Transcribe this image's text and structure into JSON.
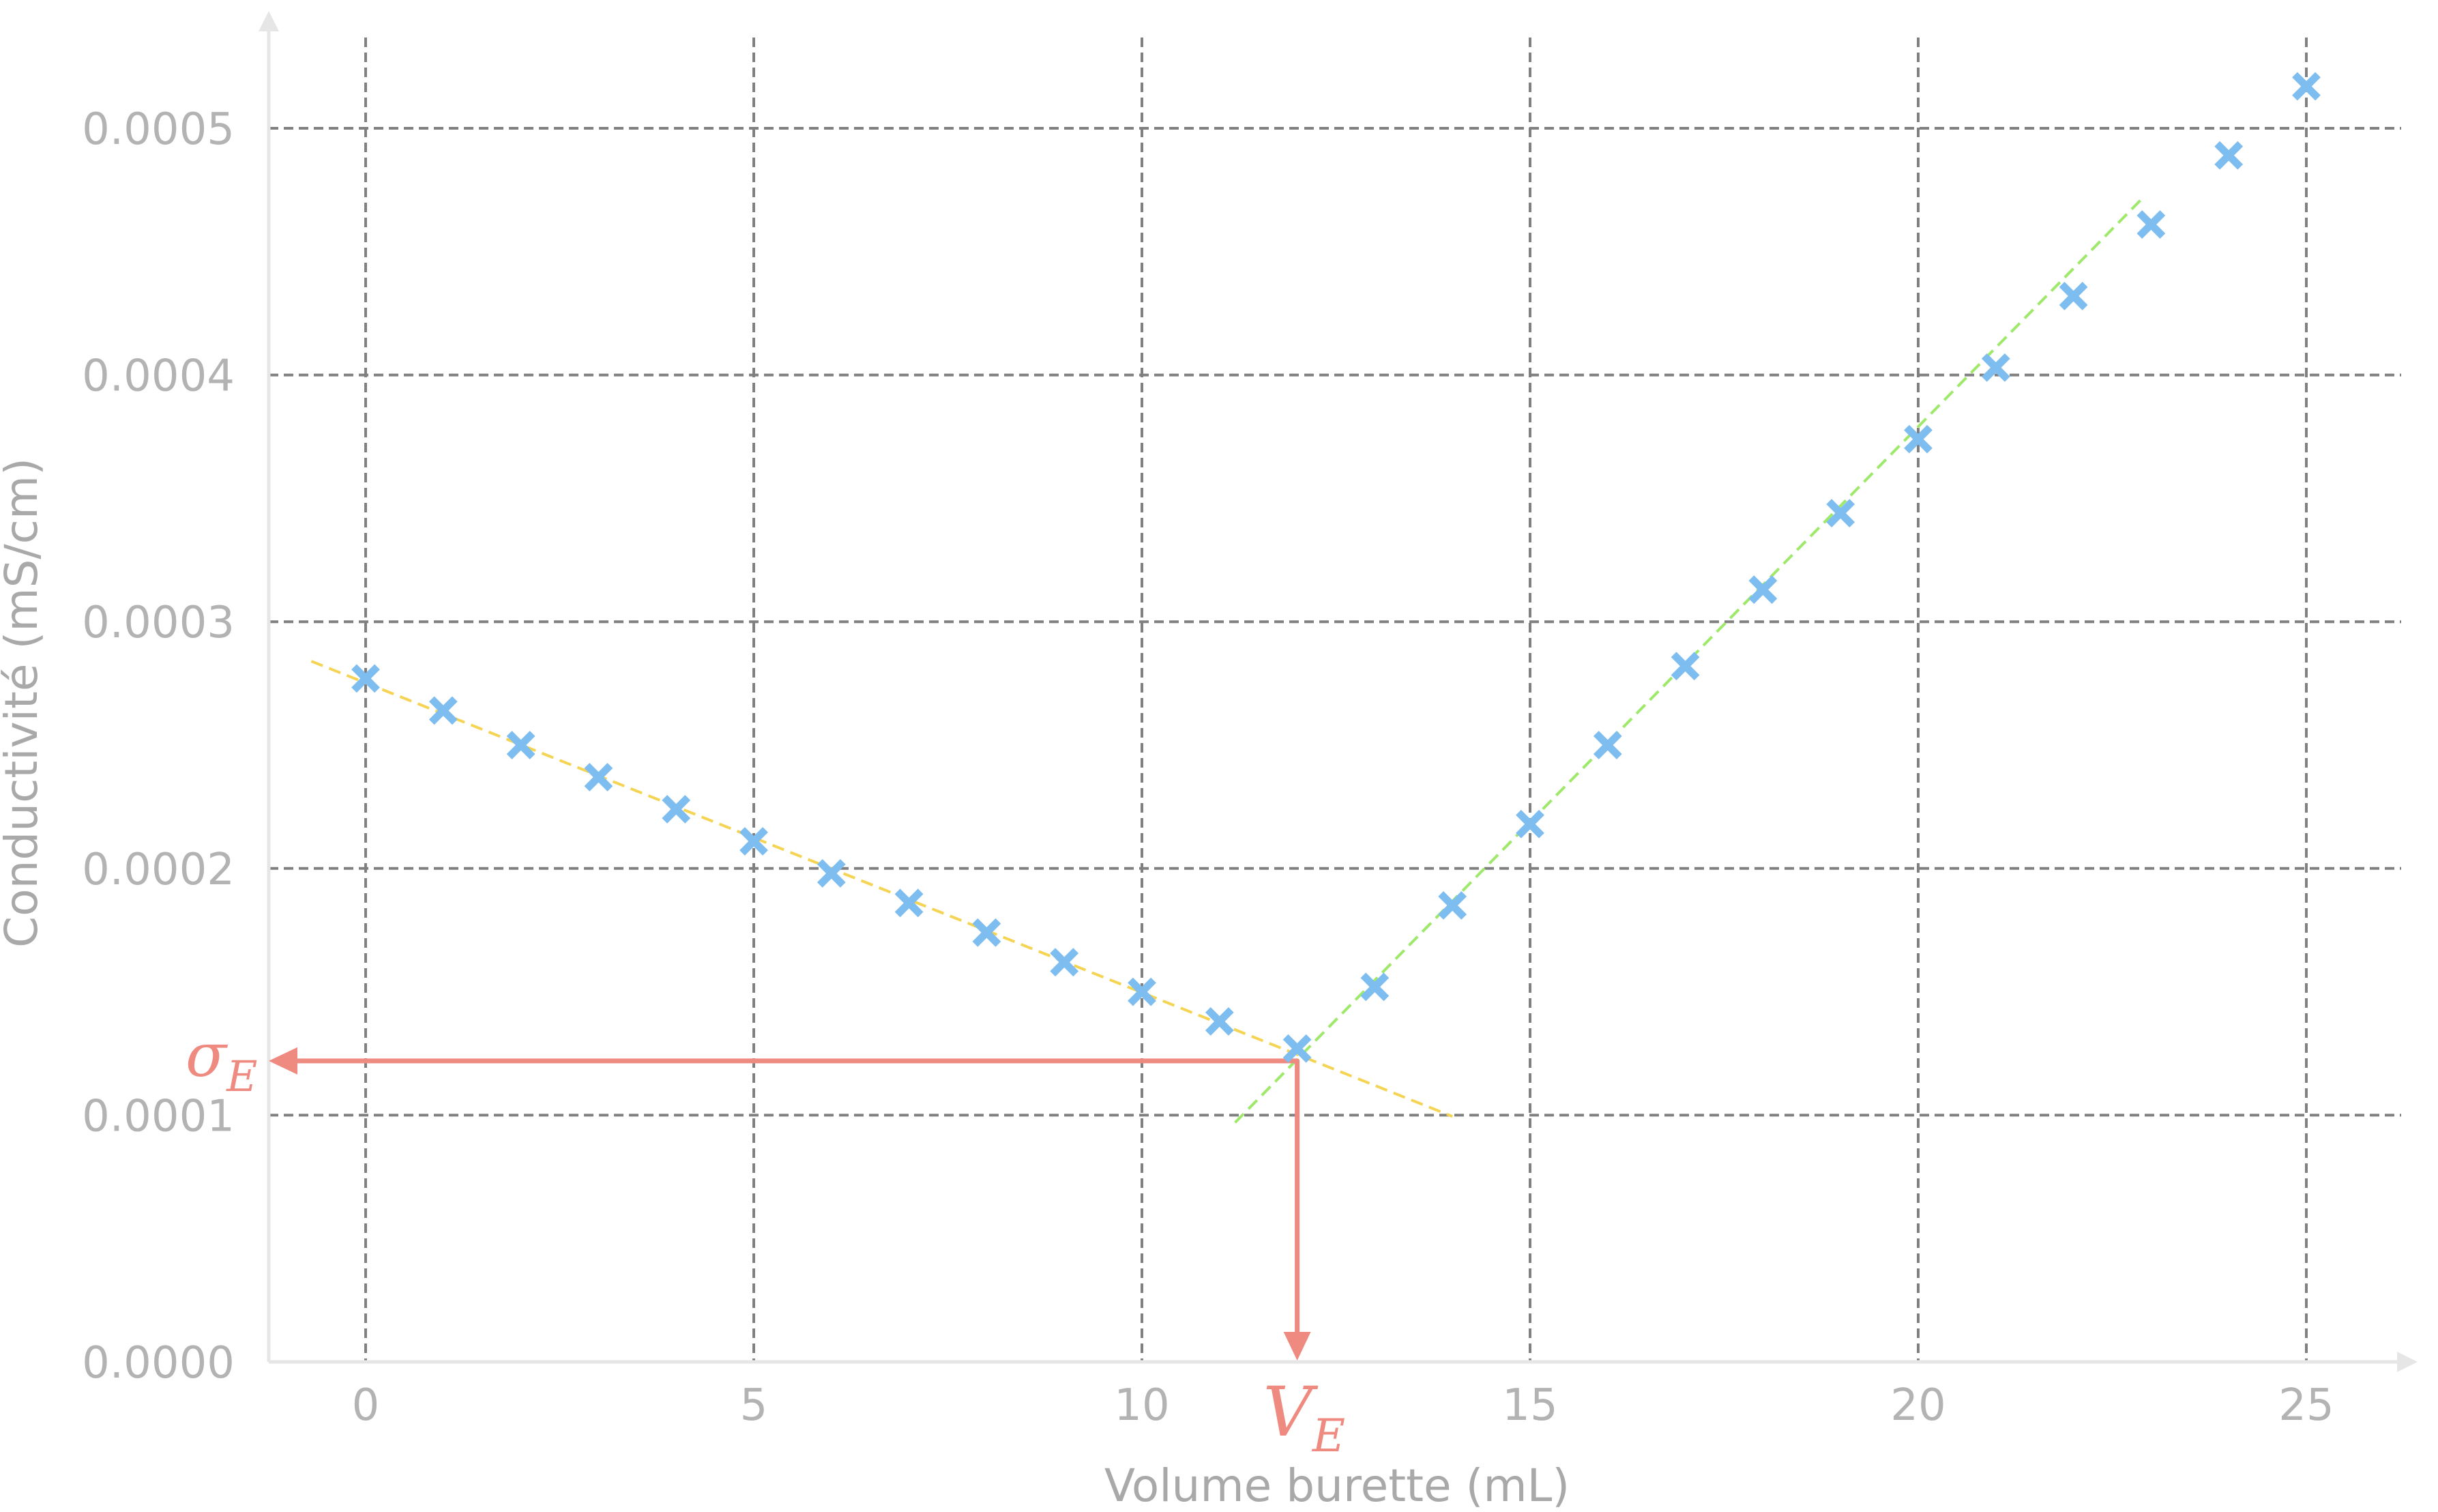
{
  "chart_data": {
    "type": "scatter",
    "title": "",
    "xlabel": "Volume burette (mL)",
    "ylabel": "Conductivité (mS/cm)",
    "xlim": [
      -1.25,
      26.25
    ],
    "ylim": [
      0,
      0.00055
    ],
    "grid": true,
    "x_ticks": [
      0,
      5,
      10,
      15,
      20,
      25
    ],
    "x_tick_labels": [
      "0",
      "5",
      "10",
      "15",
      "20",
      "25"
    ],
    "y_ticks": [
      0,
      0.0001,
      0.0002,
      0.0003,
      0.0004,
      0.0005
    ],
    "y_tick_labels": [
      "0.0000",
      "0.0001",
      "0.0002",
      "0.0003",
      "0.0004",
      "0.0005"
    ],
    "series": [
      {
        "marker": "x",
        "color": "#7dbdf0",
        "x": [
          0,
          1,
          2,
          3,
          4,
          5,
          6,
          7,
          8,
          9,
          10,
          11,
          12,
          13,
          14,
          15,
          16,
          17,
          18,
          19,
          20,
          21,
          22,
          23,
          24,
          25
        ],
        "y": [
          0.000277,
          0.000264,
          0.00025,
          0.000237,
          0.000224,
          0.000211,
          0.000198,
          0.000186,
          0.000174,
          0.000162,
          0.00015,
          0.000138,
          0.000127,
          0.000152,
          0.000185,
          0.000218,
          0.00025,
          0.000282,
          0.000313,
          0.000344,
          0.000374,
          0.000403,
          0.000432,
          0.000461,
          0.000489,
          0.000517
        ]
      }
    ],
    "fit_lines": [
      {
        "color": "#f5d453",
        "dash": true,
        "x": [
          -0.7,
          14
        ],
        "y": [
          0.000284,
          9.95e-05
        ]
      },
      {
        "color": "#9ee86a",
        "dash": true,
        "x": [
          11.2,
          22.9
        ],
        "y": [
          9.7e-05,
          0.000472
        ]
      }
    ],
    "annotations": [
      {
        "text": "σ",
        "sub": "E",
        "meaning": "equivalence conductivity",
        "x": 12,
        "y": 0.000122
      },
      {
        "text": "V",
        "sub": "E",
        "meaning": "equivalence volume",
        "x": 12,
        "y": 0
      }
    ],
    "annotation_color": "#ef8a80",
    "grid_color": "#808080",
    "axis_color": "#e6e6e6"
  }
}
